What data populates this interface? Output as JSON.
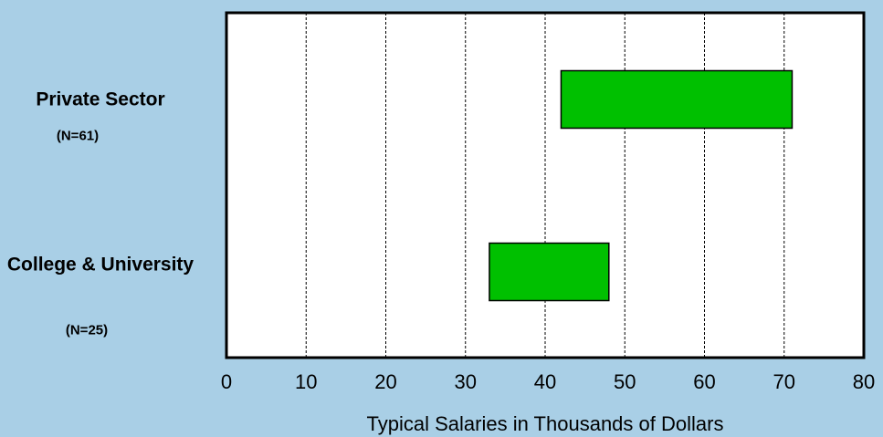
{
  "chart_data": {
    "type": "range-bar",
    "categories": [
      "Private Sector",
      "College & University"
    ],
    "sample_sizes": [
      "(N=61)",
      "(N=25)"
    ],
    "low": [
      42,
      33
    ],
    "high": [
      71,
      48
    ],
    "color": "#00c000",
    "xlabel": "Typical Salaries in Thousands of Dollars",
    "xlim": [
      0,
      80
    ],
    "xticks": [
      0,
      10,
      20,
      30,
      40,
      50,
      60,
      70,
      80
    ],
    "grid": true
  }
}
